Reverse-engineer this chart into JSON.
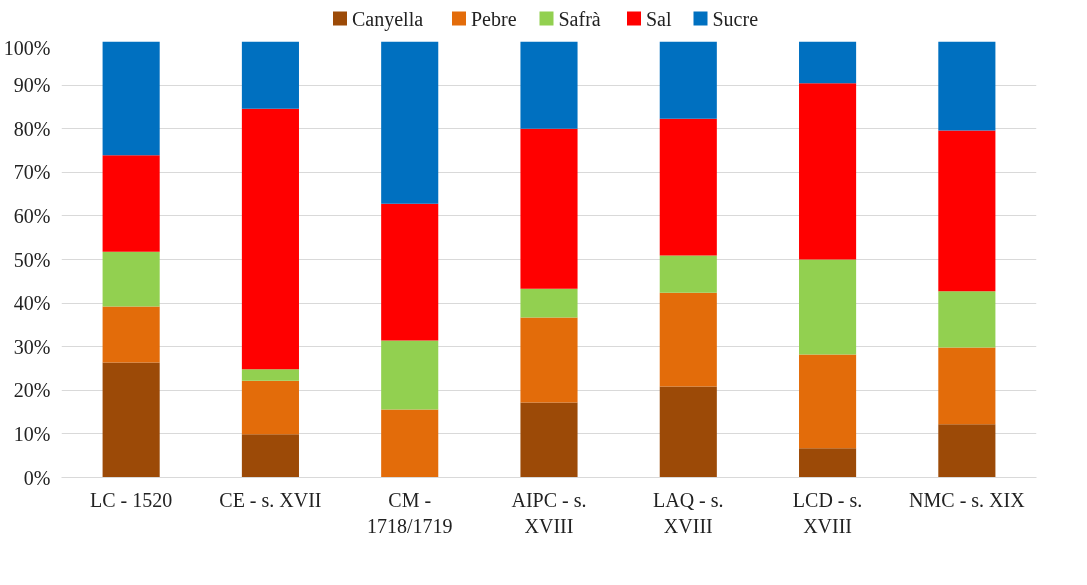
{
  "chart_data": {
    "type": "bar",
    "stacked": true,
    "categories": [
      "LC - 1520",
      "CE - s. XVII",
      "CM - 1718/1719",
      "AIPC - s. XVIII",
      "LAQ - s. XVIII",
      "LCD - s. XVIII",
      "NMC - s. XIX"
    ],
    "series": [
      {
        "name": "Canyella",
        "color": "#9c4a07",
        "values": [
          26.4,
          9.9,
          0,
          17.2,
          20.9,
          6.7,
          12.2
        ]
      },
      {
        "name": "Pebre",
        "color": "#e36c0a",
        "values": [
          12.8,
          12.3,
          15.6,
          19.5,
          21.5,
          21.5,
          17.6
        ]
      },
      {
        "name": "Safrà",
        "color": "#92d050",
        "values": [
          12.6,
          2.6,
          15.8,
          6.6,
          8.5,
          21.8,
          12.9
        ]
      },
      {
        "name": "Sal",
        "color": "#ff0000",
        "values": [
          22.1,
          59.8,
          31.4,
          36.7,
          31.4,
          40.4,
          36.9
        ]
      },
      {
        "name": "Sucre",
        "color": "#0070c0",
        "values": [
          26.1,
          15.4,
          37.2,
          20.0,
          17.7,
          9.6,
          20.4
        ]
      }
    ],
    "ylim": [
      0,
      100
    ],
    "yticks": [
      {
        "value": 0,
        "label": "0%"
      },
      {
        "value": 10,
        "label": "10%"
      },
      {
        "value": 20,
        "label": "20%"
      },
      {
        "value": 30,
        "label": "30%"
      },
      {
        "value": 40,
        "label": "40%"
      },
      {
        "value": 50,
        "label": "50%"
      },
      {
        "value": 60,
        "label": "60%"
      },
      {
        "value": 70,
        "label": "70%"
      },
      {
        "value": 80,
        "label": "80%"
      },
      {
        "value": 90,
        "label": "90%"
      },
      {
        "value": 100,
        "label": "100%"
      }
    ],
    "grid": "y",
    "legend": "top"
  }
}
